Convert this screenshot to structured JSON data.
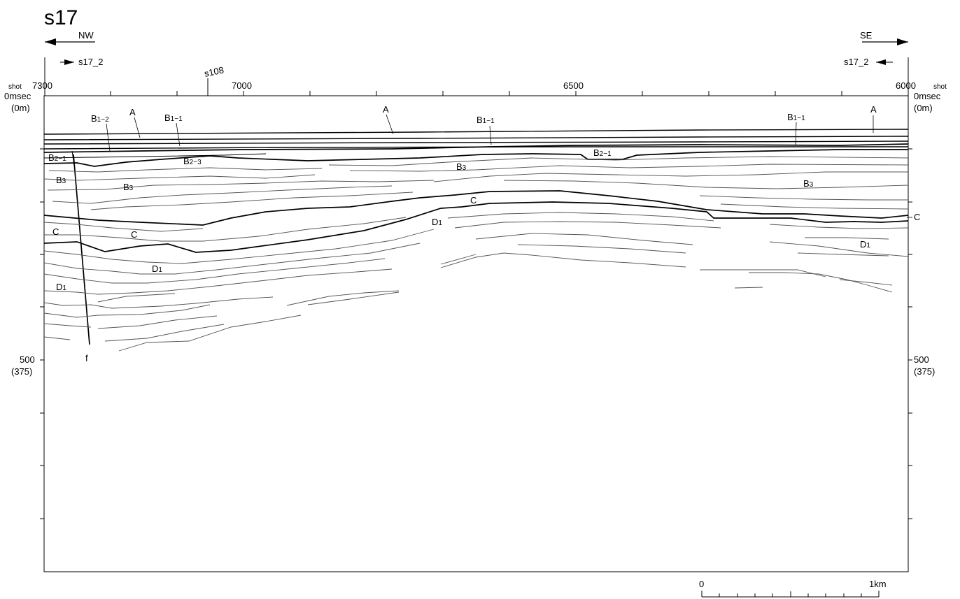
{
  "title": "s17",
  "direction": {
    "left": "NW",
    "right": "SE"
  },
  "crossline": {
    "left": "s17_2",
    "right": "s17_2"
  },
  "intersect_label": "s108",
  "shot_label": "shot",
  "shot_ticks": [
    {
      "label": "7300",
      "value": 7300
    },
    {
      "label": "7000",
      "value": 7000
    },
    {
      "label": "6500",
      "value": 6500
    },
    {
      "label": "6000",
      "value": 6000
    }
  ],
  "depth_axis": {
    "top": {
      "time": "0msec",
      "depth": "(0m)"
    },
    "mid": {
      "time": "500",
      "depth": "(375)"
    }
  },
  "fault_label": "f",
  "scale_bar": {
    "start": "0",
    "end": "1km"
  },
  "horizons": [
    "A",
    "B1-2",
    "B1-1",
    "B2-1",
    "B2-3",
    "B3",
    "C",
    "D1"
  ],
  "unit_labels": {
    "A": "A",
    "B1_main": "B",
    "B1_2_sub": "1−2",
    "B1_1_sub": "1−1",
    "B2_main": "B",
    "B2_1_sub": "2−1",
    "B2_3_sub": "2−3",
    "B3_main": "B",
    "B3_sub": "3",
    "C": "C",
    "D1_main": "D",
    "D1_sub": "1"
  }
}
